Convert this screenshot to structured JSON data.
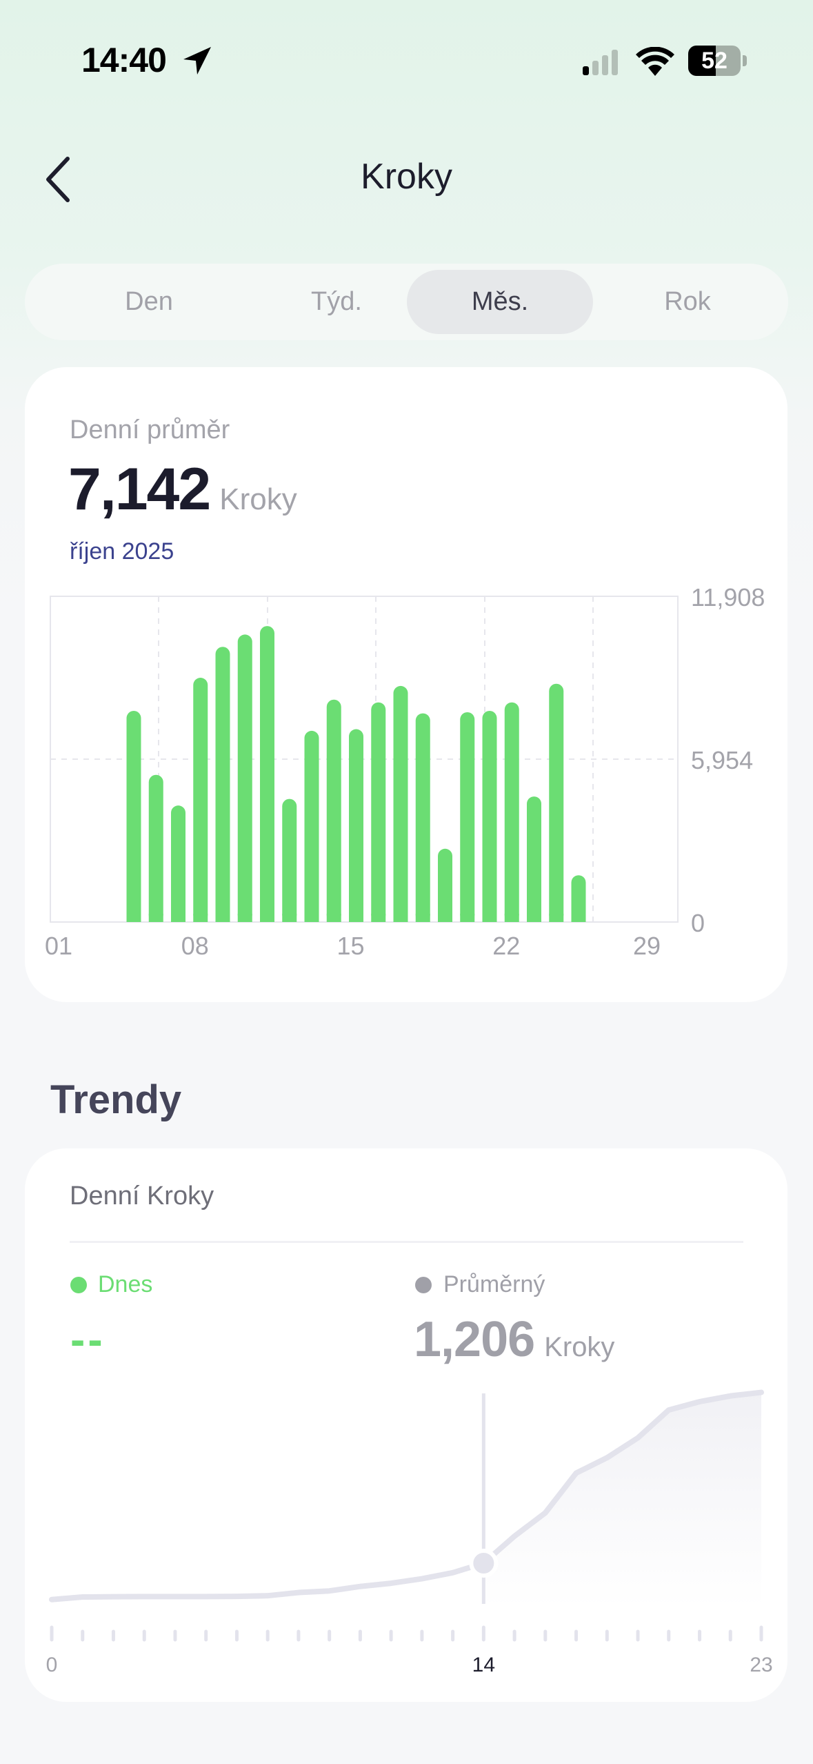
{
  "status_bar": {
    "time": "14:40",
    "battery": "52",
    "icons": [
      "location-arrow-icon",
      "signal-icon",
      "wifi-icon",
      "battery-icon"
    ]
  },
  "header": {
    "title": "Kroky",
    "back_icon": "chevron-left-icon"
  },
  "segments": {
    "items": [
      {
        "label": "Den"
      },
      {
        "label": "Týd."
      },
      {
        "label": "Měs."
      },
      {
        "label": "Rok"
      }
    ],
    "selected": "Měs."
  },
  "summary": {
    "label": "Denní průměr",
    "value": "7,142",
    "unit": "Kroky",
    "period": "říjen 2025"
  },
  "colors": {
    "bar": "#6bdd73",
    "accent_today": "#6bdd73",
    "average": "#a0a0a8",
    "line": "#e3e3ec",
    "period_text": "#3b428e"
  },
  "trends": {
    "title": "Trendy",
    "card_title": "Denní Kroky",
    "today_label": "Dnes",
    "today_value": "--",
    "average_label": "Průměrný",
    "average_value": "1,206",
    "average_unit": "Kroky"
  },
  "chart_data": [
    {
      "type": "bar",
      "x_tick_labels": [
        "01",
        "08",
        "15",
        "22",
        "29"
      ],
      "x_ticks": [
        1,
        8,
        15,
        22,
        29
      ],
      "y_tick_labels": [
        "11,908",
        "5,954",
        "0"
      ],
      "y_ticks": [
        11908,
        5954,
        0
      ],
      "ylim": [
        0,
        11908
      ],
      "grid": true,
      "days": [
        5,
        6,
        7,
        8,
        9,
        10,
        11,
        12,
        13,
        14,
        15,
        16,
        17,
        18,
        19,
        20,
        21,
        22,
        23,
        24,
        25
      ],
      "values": [
        7720,
        5380,
        4260,
        8930,
        10060,
        10510,
        10820,
        4500,
        6990,
        8130,
        7050,
        8030,
        8630,
        7630,
        2680,
        7670,
        7720,
        8030,
        4590,
        8710,
        1710
      ]
    },
    {
      "type": "area",
      "x_tick_labels": [
        "0",
        "14",
        "23"
      ],
      "x_ticks": [
        0,
        14,
        23
      ],
      "highlight_x": 14,
      "x": [
        0,
        1,
        2,
        3,
        4,
        5,
        6,
        7,
        8,
        9,
        10,
        11,
        12,
        13,
        14,
        15,
        16,
        17,
        18,
        19,
        20,
        21,
        22,
        23
      ],
      "values": [
        70,
        150,
        160,
        165,
        165,
        165,
        170,
        190,
        290,
        340,
        480,
        580,
        720,
        910,
        1206,
        2050,
        2780,
        4020,
        4500,
        5120,
        5990,
        6250,
        6430,
        6540
      ]
    }
  ]
}
